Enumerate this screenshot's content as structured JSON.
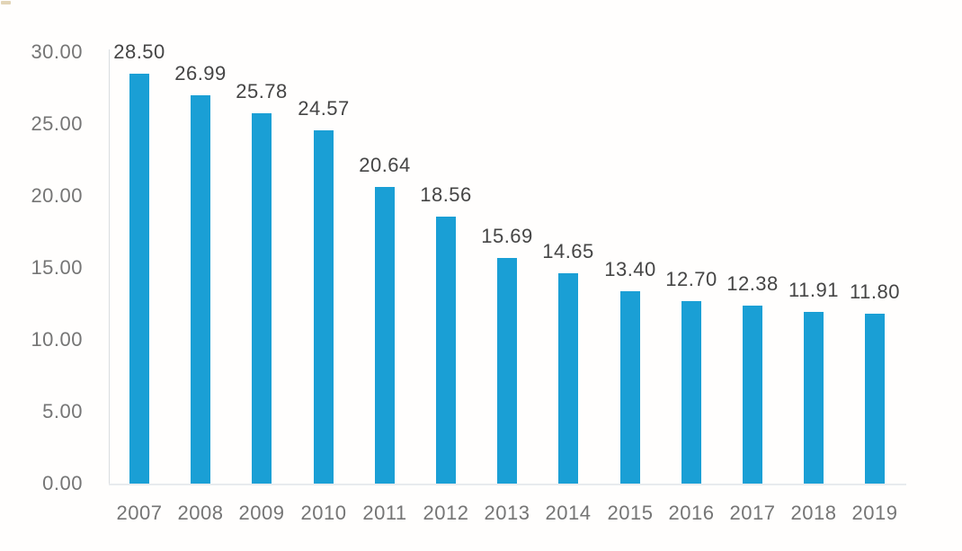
{
  "chart_data": {
    "type": "bar",
    "title": "",
    "xlabel": "",
    "ylabel": "",
    "categories": [
      "2007",
      "2008",
      "2009",
      "2010",
      "2011",
      "2012",
      "2013",
      "2014",
      "2015",
      "2016",
      "2017",
      "2018",
      "2019"
    ],
    "values": [
      28.5,
      26.99,
      25.78,
      24.57,
      20.64,
      18.56,
      15.69,
      14.65,
      13.4,
      12.7,
      12.38,
      11.91,
      11.8
    ],
    "value_labels": [
      "28.50",
      "26.99",
      "25.78",
      "24.57",
      "20.64",
      "18.56",
      "15.69",
      "14.65",
      "13.40",
      "12.70",
      "12.38",
      "11.91",
      "11.80"
    ],
    "ylim": [
      0,
      30
    ],
    "y_tick_interval": 5,
    "y_tick_labels": [
      "30.00",
      "25.00",
      "20.00",
      "15.00",
      "10.00",
      "5.00",
      "0.00"
    ],
    "y_tick_values": [
      30,
      25,
      20,
      15,
      10,
      5,
      0
    ],
    "grid": false,
    "legend": false,
    "colors": {
      "bar": "#1A9FD5",
      "value_label": "#454545",
      "axis_tick": "#757575",
      "y_axis_line": "#d9dde0",
      "baseline": "#e8ebee",
      "background": "#fffefd"
    }
  }
}
